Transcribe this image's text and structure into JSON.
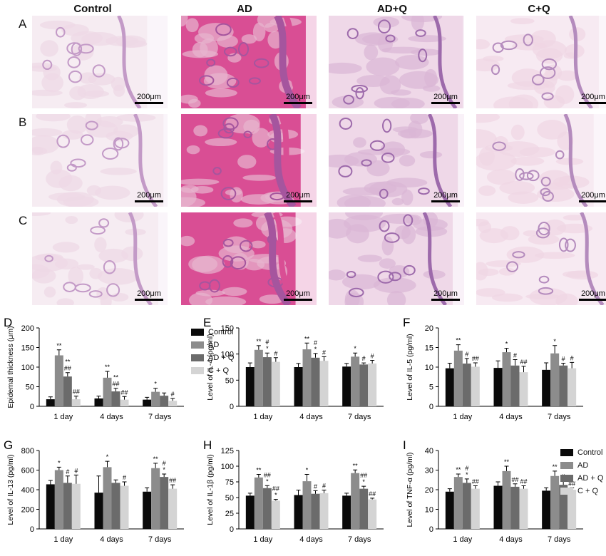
{
  "columns": [
    "Control",
    "AD",
    "AD+Q",
    "C+Q"
  ],
  "rows": [
    "A",
    "B",
    "C"
  ],
  "scale_bar": "200μm",
  "tissue_colors": {
    "Control": [
      "#eed9e6",
      "#c39ac7",
      "#f6ecf2"
    ],
    "AD": [
      "#e7b5cf",
      "#a5559e",
      "#d94e94"
    ],
    "AD+Q": [
      "#dab6d6",
      "#9d6aab",
      "#efd8e8"
    ],
    "C+Q": [
      "#f0d6e4",
      "#b48bbd",
      "#f7eaf2"
    ]
  },
  "legend": {
    "items": [
      {
        "label": "Control",
        "color": "#0a0a0a"
      },
      {
        "label": "AD",
        "color": "#8c8c8c"
      },
      {
        "label": "AD + Q",
        "color": "#6b6b6b"
      },
      {
        "label": "C + Q",
        "color": "#d4d4d4"
      }
    ]
  },
  "chart_data": [
    {
      "panel": "D",
      "type": "bar",
      "ylabel": "Epidemal thickness (μm)",
      "categories": [
        "1 day",
        "4 days",
        "7 days"
      ],
      "ylim": [
        0,
        200
      ],
      "yticks": [
        0,
        50,
        100,
        150,
        200
      ],
      "series": [
        {
          "name": "Control",
          "values": [
            18,
            20,
            17
          ],
          "errors": [
            6,
            6,
            6
          ]
        },
        {
          "name": "AD",
          "values": [
            130,
            73,
            37
          ],
          "errors": [
            14,
            16,
            9
          ]
        },
        {
          "name": "AD + Q",
          "values": [
            76,
            38,
            27
          ],
          "errors": [
            10,
            8,
            7
          ]
        },
        {
          "name": "C + Q",
          "values": [
            18,
            17,
            14
          ],
          "errors": [
            8,
            8,
            6
          ]
        }
      ],
      "annotations": [
        [
          "",
          "**",
          "**\n##",
          "##"
        ],
        [
          "",
          "**",
          "**\n##",
          "##"
        ],
        [
          "",
          "*",
          "",
          "#"
        ]
      ]
    },
    {
      "panel": "E",
      "type": "bar",
      "ylabel": "Level of IL-4 (pg/ml)",
      "categories": [
        "1 day",
        "4 days",
        "7 days"
      ],
      "ylim": [
        0,
        150
      ],
      "yticks": [
        0,
        50,
        100,
        150
      ],
      "series": [
        {
          "name": "Control",
          "values": [
            75,
            75,
            76
          ],
          "errors": [
            8,
            7,
            6
          ]
        },
        {
          "name": "AD",
          "values": [
            108,
            109,
            95
          ],
          "errors": [
            8,
            12,
            7
          ]
        },
        {
          "name": "AD + Q",
          "values": [
            94,
            93,
            80
          ],
          "errors": [
            8,
            8,
            3
          ]
        },
        {
          "name": "C + Q",
          "values": [
            85,
            87,
            82
          ],
          "errors": [
            8,
            8,
            6
          ]
        }
      ],
      "annotations": [
        [
          "",
          "**",
          "#\n*",
          "#"
        ],
        [
          "",
          "**",
          "#\n*",
          "#"
        ],
        [
          "",
          "*",
          "#",
          "#"
        ]
      ]
    },
    {
      "panel": "F",
      "type": "bar",
      "ylabel": "Level of IL-5 (pg/ml)",
      "categories": [
        "1 day",
        "4 days",
        "7 days"
      ],
      "ylim": [
        0,
        20
      ],
      "yticks": [
        0,
        5,
        10,
        15,
        20
      ],
      "series": [
        {
          "name": "Control",
          "values": [
            9.7,
            9.8,
            9.3
          ],
          "errors": [
            1.3,
            1.8,
            1.8
          ]
        },
        {
          "name": "AD",
          "values": [
            14.2,
            13.8,
            13.5
          ],
          "errors": [
            1.5,
            1,
            2
          ]
        },
        {
          "name": "AD + Q",
          "values": [
            10.9,
            10.4,
            10.4
          ],
          "errors": [
            1.3,
            1.5,
            0.6
          ]
        },
        {
          "name": "C + Q",
          "values": [
            10.1,
            8.7,
            9.7
          ],
          "errors": [
            1,
            1.5,
            1.5
          ]
        }
      ],
      "annotations": [
        [
          "",
          "**",
          "#",
          "##"
        ],
        [
          "",
          "*",
          "#",
          "##"
        ],
        [
          "",
          "*",
          "#",
          "#"
        ]
      ]
    },
    {
      "panel": "G",
      "type": "bar",
      "ylabel": "Level of IL-13 (pg/ml)",
      "categories": [
        "1 day",
        "4 days",
        "7 days"
      ],
      "ylim": [
        0,
        800
      ],
      "yticks": [
        0,
        200,
        400,
        600,
        800
      ],
      "series": [
        {
          "name": "Control",
          "values": [
            455,
            370,
            380
          ],
          "errors": [
            40,
            170,
            40
          ]
        },
        {
          "name": "AD",
          "values": [
            600,
            630,
            620
          ],
          "errors": [
            30,
            60,
            50
          ]
        },
        {
          "name": "AD + Q",
          "values": [
            470,
            470,
            530
          ],
          "errors": [
            70,
            30,
            30
          ]
        },
        {
          "name": "C + Q",
          "values": [
            460,
            440,
            410
          ],
          "errors": [
            90,
            40,
            40
          ]
        }
      ],
      "annotations": [
        [
          "",
          "*",
          "#",
          "#"
        ],
        [
          "",
          "*",
          "",
          "#"
        ],
        [
          "",
          "**",
          "#\n*",
          "##"
        ]
      ]
    },
    {
      "panel": "H",
      "type": "bar",
      "ylabel": "Level of IL-1β (pg/ml)",
      "categories": [
        "1 day",
        "4 days",
        "7 days"
      ],
      "ylim": [
        0,
        125
      ],
      "yticks": [
        0,
        25,
        50,
        75,
        100,
        125
      ],
      "series": [
        {
          "name": "Control",
          "values": [
            53,
            54,
            53
          ],
          "errors": [
            4,
            8,
            4
          ]
        },
        {
          "name": "AD",
          "values": [
            82,
            76,
            89
          ],
          "errors": [
            5,
            11,
            5
          ]
        },
        {
          "name": "AD + Q",
          "values": [
            65,
            56,
            64
          ],
          "errors": [
            4,
            5,
            4
          ]
        },
        {
          "name": "C + Q",
          "values": [
            45,
            57,
            47
          ],
          "errors": [
            2,
            5,
            2
          ]
        }
      ],
      "annotations": [
        [
          "",
          "**",
          "##\n*",
          "##\n*"
        ],
        [
          "",
          "*",
          "#",
          "#"
        ],
        [
          "",
          "**",
          "##\n*",
          "##"
        ]
      ]
    },
    {
      "panel": "I",
      "type": "bar",
      "ylabel": "Level of TNF-α (pg/ml)",
      "categories": [
        "1 day",
        "4 days",
        "7 days"
      ],
      "ylim": [
        0,
        40
      ],
      "yticks": [
        0,
        10,
        20,
        30,
        40
      ],
      "series": [
        {
          "name": "Control",
          "values": [
            19,
            22,
            19.5
          ],
          "errors": [
            1.5,
            2,
            1.5
          ]
        },
        {
          "name": "AD",
          "values": [
            26.5,
            29.5,
            27
          ],
          "errors": [
            1.5,
            2.5,
            2.5
          ]
        },
        {
          "name": "AD + Q",
          "values": [
            23.5,
            21.5,
            22.5
          ],
          "errors": [
            2,
            1.5,
            2
          ]
        },
        {
          "name": "C + Q",
          "values": [
            20.5,
            20.5,
            20
          ],
          "errors": [
            1.5,
            1.5,
            1
          ]
        }
      ],
      "annotations": [
        [
          "",
          "**",
          "#\n*",
          "##"
        ],
        [
          "",
          "**",
          "##",
          "##"
        ],
        [
          "",
          "**",
          "#",
          "##"
        ]
      ]
    }
  ]
}
